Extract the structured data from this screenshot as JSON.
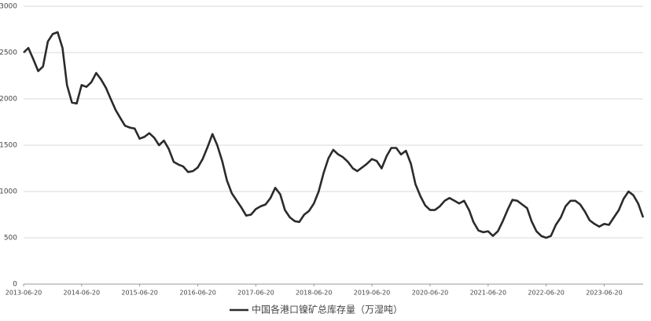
{
  "chart_data": {
    "type": "line",
    "x": [
      "2013-06-20",
      "2013-07-20",
      "2013-08-20",
      "2013-09-20",
      "2013-10-20",
      "2013-11-20",
      "2013-12-20",
      "2014-01-20",
      "2014-02-20",
      "2014-03-20",
      "2014-04-20",
      "2014-05-20",
      "2014-06-20",
      "2014-07-20",
      "2014-08-20",
      "2014-09-20",
      "2014-10-20",
      "2014-11-20",
      "2014-12-20",
      "2015-01-20",
      "2015-02-20",
      "2015-03-20",
      "2015-04-20",
      "2015-05-20",
      "2015-06-20",
      "2015-07-20",
      "2015-08-20",
      "2015-09-20",
      "2015-10-20",
      "2015-11-20",
      "2015-12-20",
      "2016-01-20",
      "2016-02-20",
      "2016-03-20",
      "2016-04-20",
      "2016-05-20",
      "2016-06-20",
      "2016-07-20",
      "2016-08-20",
      "2016-09-20",
      "2016-10-20",
      "2016-11-20",
      "2016-12-20",
      "2017-01-20",
      "2017-02-20",
      "2017-03-20",
      "2017-04-20",
      "2017-05-20",
      "2017-06-20",
      "2017-07-20",
      "2017-08-20",
      "2017-09-20",
      "2017-10-20",
      "2017-11-20",
      "2017-12-20",
      "2018-01-20",
      "2018-02-20",
      "2018-03-20",
      "2018-04-20",
      "2018-05-20",
      "2018-06-20",
      "2018-07-20",
      "2018-08-20",
      "2018-09-20",
      "2018-10-20",
      "2018-11-20",
      "2018-12-20",
      "2019-01-20",
      "2019-02-20",
      "2019-03-20",
      "2019-04-20",
      "2019-05-20",
      "2019-06-20",
      "2019-07-20",
      "2019-08-20",
      "2019-09-20",
      "2019-10-20",
      "2019-11-20",
      "2019-12-20",
      "2020-01-20",
      "2020-02-20",
      "2020-03-20",
      "2020-04-20",
      "2020-05-20",
      "2020-06-20",
      "2020-07-20",
      "2020-08-20",
      "2020-09-20",
      "2020-10-20",
      "2020-11-20",
      "2020-12-20",
      "2021-01-20",
      "2021-02-20",
      "2021-03-20",
      "2021-04-20",
      "2021-05-20",
      "2021-06-20",
      "2021-07-20",
      "2021-08-20",
      "2021-09-20",
      "2021-10-20",
      "2021-11-20",
      "2021-12-20",
      "2022-01-20",
      "2022-02-20",
      "2022-03-20",
      "2022-04-20",
      "2022-05-20",
      "2022-06-20",
      "2022-07-20",
      "2022-08-20",
      "2022-09-20",
      "2022-10-20",
      "2022-11-20",
      "2022-12-20",
      "2023-01-20",
      "2023-02-20",
      "2023-03-20",
      "2023-04-20",
      "2023-05-20",
      "2023-06-20",
      "2023-07-20",
      "2023-08-20",
      "2023-09-20",
      "2023-10-20",
      "2023-11-20",
      "2023-12-20",
      "2024-01-20",
      "2024-02-20"
    ],
    "series": [
      {
        "name": "中国各港口镍矿总库存量（万湿吨）",
        "color": "#2b2b2b",
        "values": [
          2500,
          2550,
          2430,
          2300,
          2350,
          2620,
          2700,
          2720,
          2550,
          2150,
          1960,
          1950,
          2150,
          2130,
          2180,
          2280,
          2210,
          2120,
          2000,
          1880,
          1790,
          1710,
          1690,
          1680,
          1570,
          1590,
          1630,
          1580,
          1500,
          1550,
          1460,
          1320,
          1290,
          1270,
          1210,
          1220,
          1260,
          1350,
          1480,
          1620,
          1500,
          1330,
          1120,
          980,
          900,
          830,
          740,
          750,
          810,
          840,
          860,
          930,
          1040,
          970,
          800,
          720,
          680,
          670,
          750,
          790,
          870,
          1000,
          1200,
          1360,
          1450,
          1400,
          1370,
          1320,
          1250,
          1220,
          1260,
          1300,
          1350,
          1330,
          1250,
          1380,
          1470,
          1470,
          1400,
          1440,
          1300,
          1080,
          950,
          850,
          800,
          800,
          840,
          900,
          930,
          900,
          870,
          900,
          800,
          670,
          580,
          560,
          570,
          520,
          570,
          680,
          800,
          910,
          900,
          860,
          820,
          680,
          570,
          520,
          500,
          520,
          640,
          720,
          840,
          900,
          900,
          860,
          780,
          690,
          650,
          620,
          650,
          640,
          720,
          800,
          920,
          1000,
          960,
          870,
          720
        ]
      }
    ],
    "xlim": [
      "2013-06-20",
      "2024-02-20"
    ],
    "xticks": [
      "2013-06-20",
      "2014-06-20",
      "2015-06-20",
      "2016-06-20",
      "2017-06-20",
      "2018-06-20",
      "2019-06-20",
      "2020-06-20",
      "2021-06-20",
      "2022-06-20",
      "2023-06-20"
    ],
    "ylim": [
      0,
      3000
    ],
    "yticks": [
      0,
      500,
      1000,
      1500,
      2000,
      2500,
      3000
    ],
    "grid": true,
    "legend": "bottom"
  }
}
